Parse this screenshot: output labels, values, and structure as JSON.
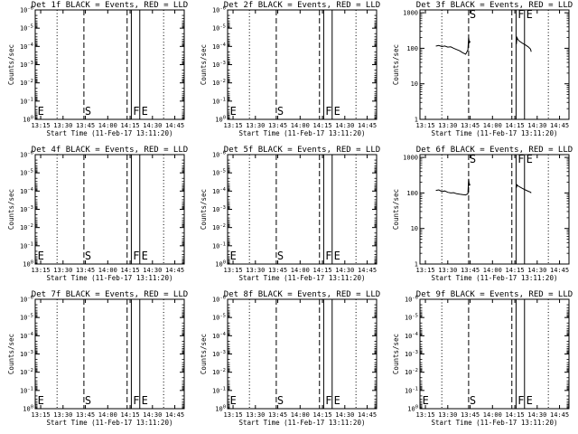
{
  "chart_data": [
    {
      "type": "line",
      "title": "Det 1f BLACK = Events, RED = LLD",
      "xlabel": "Start Time (11-Feb-17 13:11:20)",
      "ylabel": "Counts/sec",
      "x_tick_labels": [
        "13:15",
        "13:30",
        "13:45",
        "14:00",
        "14:15",
        "14:30",
        "14:45"
      ],
      "x_ticks": [
        "13:15",
        "13:30",
        "13:45",
        "14:00",
        "14:15",
        "14:30",
        "14:45"
      ],
      "xlim": [
        "13:11:20",
        "14:51:20"
      ],
      "y_scale": "log",
      "y_tick_labels": [
        "10^-6",
        "10^-5",
        "10^-4",
        "10^-3",
        "10^-2",
        "10^-1",
        "10^0"
      ],
      "y_ticks": [
        1e-06,
        1e-05,
        0.0001,
        0.001,
        0.01,
        0.1,
        1
      ],
      "ylim": [
        1,
        1e-06
      ],
      "vlines": [
        {
          "x": "13:26:00",
          "style": "dotted"
        },
        {
          "x": "13:44:00",
          "style": "dashed"
        },
        {
          "x": "14:13:00",
          "style": "dashed"
        },
        {
          "x": "14:15:50",
          "style": "solid"
        },
        {
          "x": "14:21:30",
          "style": "solid"
        },
        {
          "x": "14:37:30",
          "style": "dotted"
        }
      ],
      "markers": [
        {
          "text": "E",
          "x": "13:12:20"
        },
        {
          "text": "S",
          "x": "13:44:00"
        },
        {
          "text": "F",
          "x": "14:16:20"
        },
        {
          "text": "E",
          "x": "14:22:00"
        }
      ],
      "series": []
    },
    {
      "type": "line",
      "title": "Det 2f BLACK = Events, RED = LLD",
      "xlabel": "Start Time (11-Feb-17 13:11:20)",
      "ylabel": "Counts/sec",
      "x_tick_labels": [
        "13:15",
        "13:30",
        "13:45",
        "14:00",
        "14:15",
        "14:30",
        "14:45"
      ],
      "x_ticks": [
        "13:15",
        "13:30",
        "13:45",
        "14:00",
        "14:15",
        "14:30",
        "14:45"
      ],
      "xlim": [
        "13:11:20",
        "14:51:20"
      ],
      "y_scale": "log",
      "y_tick_labels": [
        "10^-6",
        "10^-5",
        "10^-4",
        "10^-3",
        "10^-2",
        "10^-1",
        "10^0"
      ],
      "y_ticks": [
        1e-06,
        1e-05,
        0.0001,
        0.001,
        0.01,
        0.1,
        1
      ],
      "ylim": [
        1,
        1e-06
      ],
      "vlines": [
        {
          "x": "13:26:00",
          "style": "dotted"
        },
        {
          "x": "13:44:00",
          "style": "dashed"
        },
        {
          "x": "14:13:00",
          "style": "dashed"
        },
        {
          "x": "14:15:50",
          "style": "solid"
        },
        {
          "x": "14:21:30",
          "style": "solid"
        },
        {
          "x": "14:37:30",
          "style": "dotted"
        }
      ],
      "markers": [
        {
          "text": "E",
          "x": "13:12:20"
        },
        {
          "text": "S",
          "x": "13:44:00"
        },
        {
          "text": "F",
          "x": "14:16:20"
        },
        {
          "text": "E",
          "x": "14:22:00"
        }
      ],
      "series": []
    },
    {
      "type": "line",
      "title": "Det 3f BLACK = Events, RED = LLD",
      "xlabel": "Start Time (11-Feb-17 13:11:20)",
      "ylabel": "Counts/sec",
      "x_tick_labels": [
        "13:15",
        "13:30",
        "13:45",
        "14:00",
        "14:15",
        "14:30",
        "14:45"
      ],
      "x_ticks": [
        "13:15",
        "13:30",
        "13:45",
        "14:00",
        "14:15",
        "14:30",
        "14:45"
      ],
      "xlim": [
        "13:11:20",
        "14:51:20"
      ],
      "y_scale": "log",
      "y_tick_labels": [
        "1",
        "10",
        "100",
        "1000"
      ],
      "y_ticks": [
        1,
        10,
        100,
        1000
      ],
      "ylim": [
        1,
        1200
      ],
      "vlines": [
        {
          "x": "13:26:00",
          "style": "dotted"
        },
        {
          "x": "13:44:00",
          "style": "dashed"
        },
        {
          "x": "14:13:00",
          "style": "dashed"
        },
        {
          "x": "14:15:50",
          "style": "solid"
        },
        {
          "x": "14:21:30",
          "style": "solid"
        },
        {
          "x": "14:37:30",
          "style": "dotted"
        }
      ],
      "markers": [
        {
          "text": "S",
          "x": "13:44:00"
        },
        {
          "text": "F",
          "x": "14:16:20"
        },
        {
          "text": "E",
          "x": "14:22:00"
        }
      ],
      "series": [
        {
          "color": "#000000",
          "segments": [
            [
              [
                "13:22:00",
                115
              ],
              [
                "13:24:00",
                120
              ],
              [
                "13:26:00",
                112
              ],
              [
                "13:28:00",
                116
              ],
              [
                "13:30:00",
                108
              ],
              [
                "13:32:00",
                110
              ],
              [
                "13:34:00",
                100
              ],
              [
                "13:36:00",
                92
              ],
              [
                "13:38:00",
                85
              ],
              [
                "13:40:00",
                75
              ],
              [
                "13:42:00",
                68
              ],
              [
                "13:43:30",
                90
              ],
              [
                "13:44:00",
                200
              ],
              [
                "13:44:30",
                140
              ],
              [
                "13:45:00",
                160
              ]
            ],
            [
              [
                "14:16:00",
                130
              ],
              [
                "14:16:30",
                200
              ],
              [
                "14:17:00",
                180
              ],
              [
                "14:18:00",
                160
              ],
              [
                "14:20:00",
                140
              ],
              [
                "14:22:00",
                125
              ],
              [
                "14:24:00",
                110
              ],
              [
                "14:25:30",
                95
              ],
              [
                "14:26:00",
                80
              ]
            ]
          ]
        }
      ]
    },
    {
      "type": "line",
      "title": "Det 4f BLACK = Events, RED = LLD",
      "xlabel": "Start Time (11-Feb-17 13:11:20)",
      "ylabel": "Counts/sec",
      "x_tick_labels": [
        "13:15",
        "13:30",
        "13:45",
        "14:00",
        "14:15",
        "14:30",
        "14:45"
      ],
      "x_ticks": [
        "13:15",
        "13:30",
        "13:45",
        "14:00",
        "14:15",
        "14:30",
        "14:45"
      ],
      "xlim": [
        "13:11:20",
        "14:51:20"
      ],
      "y_scale": "log",
      "y_tick_labels": [
        "10^-6",
        "10^-5",
        "10^-4",
        "10^-3",
        "10^-2",
        "10^-1",
        "10^0"
      ],
      "y_ticks": [
        1e-06,
        1e-05,
        0.0001,
        0.001,
        0.01,
        0.1,
        1
      ],
      "ylim": [
        1,
        1e-06
      ],
      "vlines": [
        {
          "x": "13:26:00",
          "style": "dotted"
        },
        {
          "x": "13:44:00",
          "style": "dashed"
        },
        {
          "x": "14:13:00",
          "style": "dashed"
        },
        {
          "x": "14:15:50",
          "style": "solid"
        },
        {
          "x": "14:21:30",
          "style": "solid"
        },
        {
          "x": "14:37:30",
          "style": "dotted"
        }
      ],
      "markers": [
        {
          "text": "E",
          "x": "13:12:20"
        },
        {
          "text": "S",
          "x": "13:44:00"
        },
        {
          "text": "F",
          "x": "14:16:20"
        },
        {
          "text": "E",
          "x": "14:22:00"
        }
      ],
      "series": []
    },
    {
      "type": "line",
      "title": "Det 5f BLACK = Events, RED = LLD",
      "xlabel": "Start Time (11-Feb-17 13:11:20)",
      "ylabel": "Counts/sec",
      "x_tick_labels": [
        "13:15",
        "13:30",
        "13:45",
        "14:00",
        "14:15",
        "14:30",
        "14:45"
      ],
      "x_ticks": [
        "13:15",
        "13:30",
        "13:45",
        "14:00",
        "14:15",
        "14:30",
        "14:45"
      ],
      "xlim": [
        "13:11:20",
        "14:51:20"
      ],
      "y_scale": "log",
      "y_tick_labels": [
        "10^-6",
        "10^-5",
        "10^-4",
        "10^-3",
        "10^-2",
        "10^-1",
        "10^0"
      ],
      "y_ticks": [
        1e-06,
        1e-05,
        0.0001,
        0.001,
        0.01,
        0.1,
        1
      ],
      "ylim": [
        1,
        1e-06
      ],
      "vlines": [
        {
          "x": "13:26:00",
          "style": "dotted"
        },
        {
          "x": "13:44:00",
          "style": "dashed"
        },
        {
          "x": "14:13:00",
          "style": "dashed"
        },
        {
          "x": "14:15:50",
          "style": "solid"
        },
        {
          "x": "14:21:30",
          "style": "solid"
        },
        {
          "x": "14:37:30",
          "style": "dotted"
        }
      ],
      "markers": [
        {
          "text": "E",
          "x": "13:12:20"
        },
        {
          "text": "S",
          "x": "13:44:00"
        },
        {
          "text": "F",
          "x": "14:16:20"
        },
        {
          "text": "E",
          "x": "14:22:00"
        }
      ],
      "series": []
    },
    {
      "type": "line",
      "title": "Det 6f BLACK = Events, RED = LLD",
      "xlabel": "Start Time (11-Feb-17 13:11:20)",
      "ylabel": "Counts/sec",
      "x_tick_labels": [
        "13:15",
        "13:30",
        "13:45",
        "14:00",
        "14:15",
        "14:30",
        "14:45"
      ],
      "x_ticks": [
        "13:15",
        "13:30",
        "13:45",
        "14:00",
        "14:15",
        "14:30",
        "14:45"
      ],
      "xlim": [
        "13:11:20",
        "14:51:20"
      ],
      "y_scale": "log",
      "y_tick_labels": [
        "1",
        "10",
        "100",
        "1000"
      ],
      "y_ticks": [
        1,
        10,
        100,
        1000
      ],
      "ylim": [
        1,
        1200
      ],
      "vlines": [
        {
          "x": "13:26:00",
          "style": "dotted"
        },
        {
          "x": "13:44:00",
          "style": "dashed"
        },
        {
          "x": "14:13:00",
          "style": "dashed"
        },
        {
          "x": "14:15:50",
          "style": "solid"
        },
        {
          "x": "14:21:30",
          "style": "solid"
        },
        {
          "x": "14:37:30",
          "style": "dotted"
        }
      ],
      "markers": [
        {
          "text": "S",
          "x": "13:44:00"
        },
        {
          "text": "F",
          "x": "14:16:20"
        },
        {
          "text": "E",
          "x": "14:22:00"
        }
      ],
      "series": [
        {
          "color": "#000000",
          "segments": [
            [
              [
                "13:22:00",
                118
              ],
              [
                "13:24:00",
                122
              ],
              [
                "13:26:00",
                110
              ],
              [
                "13:28:00",
                114
              ],
              [
                "13:30:00",
                104
              ],
              [
                "13:32:00",
                100
              ],
              [
                "13:34:00",
                102
              ],
              [
                "13:36:00",
                95
              ],
              [
                "13:38:00",
                92
              ],
              [
                "13:40:00",
                90
              ],
              [
                "13:42:00",
                88
              ],
              [
                "13:43:30",
                95
              ],
              [
                "13:44:00",
                250
              ],
              [
                "13:44:30",
                160
              ],
              [
                "13:45:00",
                180
              ]
            ],
            [
              [
                "14:16:00",
                140
              ],
              [
                "14:16:30",
                170
              ],
              [
                "14:17:00",
                160
              ],
              [
                "14:18:00",
                150
              ],
              [
                "14:20:00",
                135
              ],
              [
                "14:22:00",
                122
              ],
              [
                "14:24:00",
                112
              ],
              [
                "14:25:30",
                105
              ],
              [
                "14:26:00",
                100
              ]
            ]
          ]
        }
      ]
    },
    {
      "type": "line",
      "title": "Det 7f BLACK = Events, RED = LLD",
      "xlabel": "Start Time (11-Feb-17 13:11:20)",
      "ylabel": "Counts/sec",
      "x_tick_labels": [
        "13:15",
        "13:30",
        "13:45",
        "14:00",
        "14:15",
        "14:30",
        "14:45"
      ],
      "x_ticks": [
        "13:15",
        "13:30",
        "13:45",
        "14:00",
        "14:15",
        "14:30",
        "14:45"
      ],
      "xlim": [
        "13:11:20",
        "14:51:20"
      ],
      "y_scale": "log",
      "y_tick_labels": [
        "10^-6",
        "10^-5",
        "10^-4",
        "10^-3",
        "10^-2",
        "10^-1",
        "10^0"
      ],
      "y_ticks": [
        1e-06,
        1e-05,
        0.0001,
        0.001,
        0.01,
        0.1,
        1
      ],
      "ylim": [
        1,
        1e-06
      ],
      "vlines": [
        {
          "x": "13:26:00",
          "style": "dotted"
        },
        {
          "x": "13:44:00",
          "style": "dashed"
        },
        {
          "x": "14:13:00",
          "style": "dashed"
        },
        {
          "x": "14:15:50",
          "style": "solid"
        },
        {
          "x": "14:21:30",
          "style": "solid"
        },
        {
          "x": "14:37:30",
          "style": "dotted"
        }
      ],
      "markers": [
        {
          "text": "E",
          "x": "13:12:20"
        },
        {
          "text": "S",
          "x": "13:44:00"
        },
        {
          "text": "F",
          "x": "14:16:20"
        },
        {
          "text": "E",
          "x": "14:22:00"
        }
      ],
      "series": []
    },
    {
      "type": "line",
      "title": "Det 8f BLACK = Events, RED = LLD",
      "xlabel": "Start Time (11-Feb-17 13:11:20)",
      "ylabel": "Counts/sec",
      "x_tick_labels": [
        "13:15",
        "13:30",
        "13:45",
        "14:00",
        "14:15",
        "14:30",
        "14:45"
      ],
      "x_ticks": [
        "13:15",
        "13:30",
        "13:45",
        "14:00",
        "14:15",
        "14:30",
        "14:45"
      ],
      "xlim": [
        "13:11:20",
        "14:51:20"
      ],
      "y_scale": "log",
      "y_tick_labels": [
        "10^-6",
        "10^-5",
        "10^-4",
        "10^-3",
        "10^-2",
        "10^-1",
        "10^0"
      ],
      "y_ticks": [
        1e-06,
        1e-05,
        0.0001,
        0.001,
        0.01,
        0.1,
        1
      ],
      "ylim": [
        1,
        1e-06
      ],
      "vlines": [
        {
          "x": "13:26:00",
          "style": "dotted"
        },
        {
          "x": "13:44:00",
          "style": "dashed"
        },
        {
          "x": "14:13:00",
          "style": "dashed"
        },
        {
          "x": "14:15:50",
          "style": "solid"
        },
        {
          "x": "14:21:30",
          "style": "solid"
        },
        {
          "x": "14:37:30",
          "style": "dotted"
        }
      ],
      "markers": [
        {
          "text": "E",
          "x": "13:12:20"
        },
        {
          "text": "S",
          "x": "13:44:00"
        },
        {
          "text": "F",
          "x": "14:16:20"
        },
        {
          "text": "E",
          "x": "14:22:00"
        }
      ],
      "series": []
    },
    {
      "type": "line",
      "title": "Det 9f BLACK = Events, RED = LLD",
      "xlabel": "Start Time (11-Feb-17 13:11:20)",
      "ylabel": "Counts/sec",
      "x_tick_labels": [
        "13:15",
        "13:30",
        "13:45",
        "14:00",
        "14:15",
        "14:30",
        "14:45"
      ],
      "x_ticks": [
        "13:15",
        "13:30",
        "13:45",
        "14:00",
        "14:15",
        "14:30",
        "14:45"
      ],
      "xlim": [
        "13:11:20",
        "14:51:20"
      ],
      "y_scale": "log",
      "y_tick_labels": [
        "10^-6",
        "10^-5",
        "10^-4",
        "10^-3",
        "10^-2",
        "10^-1",
        "10^0"
      ],
      "y_ticks": [
        1e-06,
        1e-05,
        0.0001,
        0.001,
        0.01,
        0.1,
        1
      ],
      "ylim": [
        1,
        1e-06
      ],
      "vlines": [
        {
          "x": "13:26:00",
          "style": "dotted"
        },
        {
          "x": "13:44:00",
          "style": "dashed"
        },
        {
          "x": "14:13:00",
          "style": "dashed"
        },
        {
          "x": "14:15:50",
          "style": "solid"
        },
        {
          "x": "14:21:30",
          "style": "solid"
        },
        {
          "x": "14:37:30",
          "style": "dotted"
        }
      ],
      "markers": [
        {
          "text": "E",
          "x": "13:12:20"
        },
        {
          "text": "S",
          "x": "13:44:00"
        },
        {
          "text": "F",
          "x": "14:16:20"
        },
        {
          "text": "E",
          "x": "14:22:00"
        }
      ],
      "series": []
    }
  ]
}
